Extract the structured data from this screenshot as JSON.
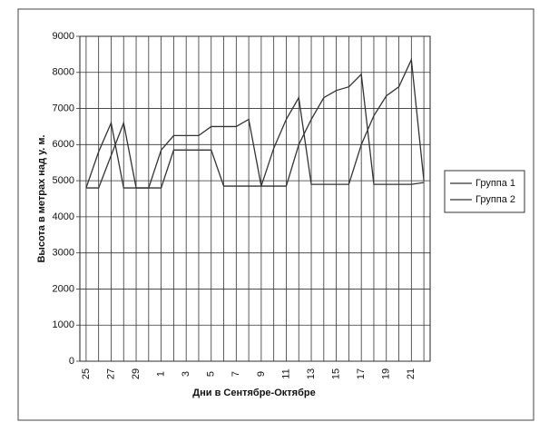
{
  "chart_data": {
    "type": "line",
    "xlabel": "Дни в Сентябре-Октябре",
    "ylabel": "Высота в метрах над у. м.",
    "categories": [
      "25",
      null,
      "27",
      null,
      "29",
      null,
      "1",
      null,
      "3",
      null,
      "5",
      null,
      "7",
      null,
      "9",
      null,
      "11",
      null,
      "13",
      null,
      "15",
      null,
      "17",
      null,
      "19",
      null,
      "21",
      null
    ],
    "series": [
      {
        "name": "Группа 1",
        "color": "#333333",
        "values": [
          4800,
          5800,
          6600,
          4800,
          4800,
          4800,
          5850,
          6250,
          6250,
          6250,
          6500,
          6500,
          6500,
          6700,
          4850,
          5900,
          6700,
          7300,
          4900,
          4900,
          4900,
          4900,
          6000,
          6800,
          7350,
          7600,
          8350,
          5000
        ]
      },
      {
        "name": "Группа 2",
        "color": "#333333",
        "values": [
          4800,
          4800,
          5700,
          6600,
          4800,
          4800,
          4800,
          5850,
          5850,
          5850,
          5850,
          4850,
          4850,
          4850,
          4850,
          4850,
          4850,
          6000,
          6700,
          7300,
          7500,
          7600,
          7950,
          4900,
          4900,
          4900,
          4900,
          4950
        ]
      }
    ],
    "ylim": [
      0,
      9000
    ],
    "yticks": [
      0,
      1000,
      2000,
      3000,
      4000,
      5000,
      6000,
      7000,
      8000,
      9000
    ],
    "grid": true,
    "legend": "right"
  }
}
